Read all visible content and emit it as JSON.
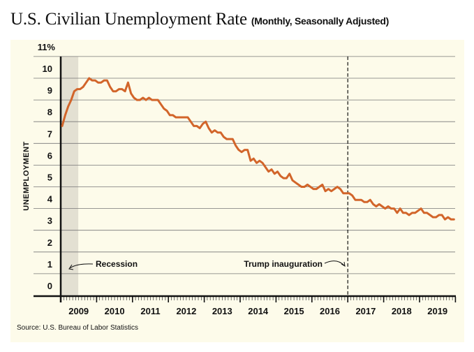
{
  "header": {
    "title": "U.S. Civilian Unemployment Rate",
    "subtitle": "(Monthly, Seasonally Adjusted)"
  },
  "chart_data": {
    "type": "line",
    "title": "U.S. Civilian Unemployment Rate",
    "subtitle": "(Monthly, Seasonally Adjusted)",
    "ylabel": "UNEMPLOYMENT",
    "xlabel": "",
    "ylim": [
      0,
      11
    ],
    "y_ticks": [
      "0",
      "1",
      "2",
      "3",
      "4",
      "5",
      "6",
      "7",
      "8",
      "9",
      "10",
      "11%"
    ],
    "x_ticks": [
      "2009",
      "2010",
      "2011",
      "2012",
      "2013",
      "2014",
      "2015",
      "2016",
      "2017",
      "2018",
      "2019"
    ],
    "x_start": "2009-01",
    "grid": true,
    "series": [
      {
        "name": "Unemployment rate (%)",
        "color": "#d2652a",
        "values": [
          7.8,
          8.3,
          8.7,
          9.0,
          9.4,
          9.5,
          9.5,
          9.6,
          9.8,
          10.0,
          9.9,
          9.9,
          9.8,
          9.8,
          9.9,
          9.9,
          9.6,
          9.4,
          9.4,
          9.5,
          9.5,
          9.4,
          9.8,
          9.3,
          9.1,
          9.0,
          9.0,
          9.1,
          9.0,
          9.1,
          9.0,
          9.0,
          9.0,
          8.8,
          8.6,
          8.5,
          8.3,
          8.3,
          8.2,
          8.2,
          8.2,
          8.2,
          8.2,
          8.0,
          7.8,
          7.8,
          7.7,
          7.9,
          8.0,
          7.7,
          7.5,
          7.6,
          7.5,
          7.5,
          7.3,
          7.2,
          7.2,
          7.2,
          6.9,
          6.7,
          6.6,
          6.7,
          6.7,
          6.2,
          6.3,
          6.1,
          6.2,
          6.1,
          5.9,
          5.7,
          5.8,
          5.6,
          5.7,
          5.5,
          5.4,
          5.4,
          5.6,
          5.3,
          5.2,
          5.1,
          5.0,
          5.0,
          5.1,
          5.0,
          4.9,
          4.9,
          5.0,
          5.1,
          4.8,
          4.9,
          4.8,
          4.9,
          5.0,
          4.9,
          4.7,
          4.7,
          4.7,
          4.6,
          4.4,
          4.4,
          4.4,
          4.3,
          4.3,
          4.4,
          4.2,
          4.1,
          4.2,
          4.1,
          4.0,
          4.1,
          4.0,
          4.0,
          3.8,
          4.0,
          3.8,
          3.8,
          3.7,
          3.8,
          3.8,
          3.9,
          4.0,
          3.8,
          3.8,
          3.7,
          3.6,
          3.6,
          3.7,
          3.7,
          3.5,
          3.6,
          3.5,
          3.5
        ]
      }
    ],
    "annotations": {
      "recession": {
        "label": "Recession",
        "start": "2009-01",
        "end": "2009-06",
        "color": "#e3e0d2"
      },
      "inauguration": {
        "label": "Trump inauguration",
        "date": "2017-01"
      }
    },
    "source": "Source: U.S. Bureau of Labor Statistics"
  }
}
